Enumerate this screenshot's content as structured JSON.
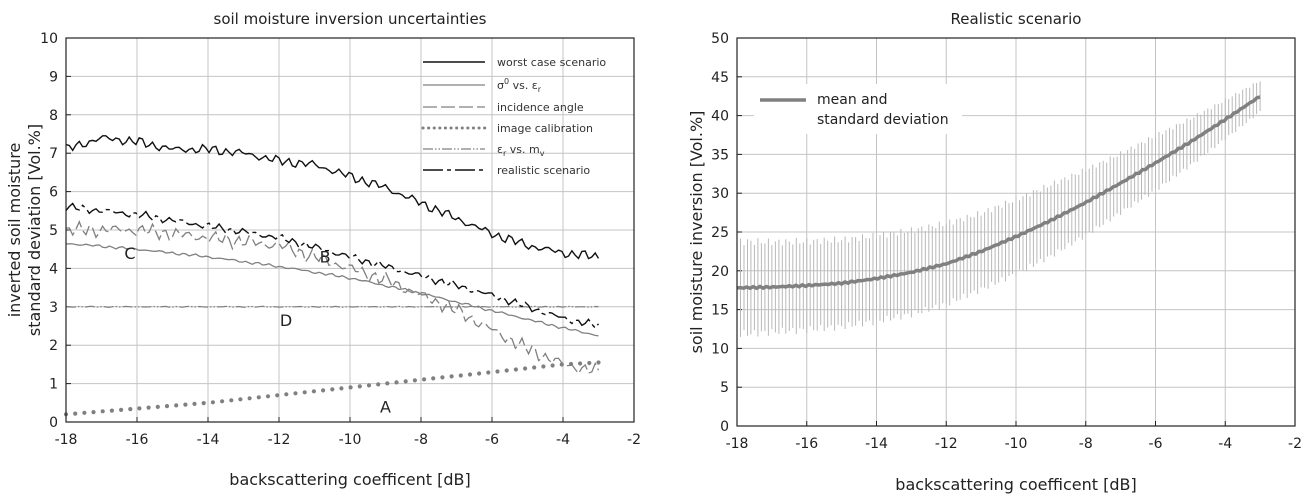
{
  "chart_data": [
    {
      "type": "line",
      "title": "soil moisture inversion uncertainties",
      "xlabel": "backscattering coefficent [dB]",
      "ylabel_lines": [
        "inverted soil moisture",
        "standard deviation [Vol.%]"
      ],
      "xlim": [
        -18,
        -2
      ],
      "ylim": [
        0,
        10
      ],
      "xticks": [
        -18,
        -16,
        -14,
        -12,
        -10,
        -8,
        -6,
        -4,
        -2
      ],
      "yticks": [
        0,
        1,
        2,
        3,
        4,
        5,
        6,
        7,
        8,
        9,
        10
      ],
      "grid": true,
      "legend_position": "top-right",
      "series": [
        {
          "name": "worst case scenario",
          "x": [
            -18,
            -17,
            -16,
            -15,
            -14,
            -13,
            -12,
            -11,
            -10,
            -9,
            -8,
            -7,
            -6,
            -5,
            -4,
            -3
          ],
          "y": [
            7.1,
            7.4,
            7.3,
            7.1,
            7.1,
            7.0,
            6.8,
            6.7,
            6.4,
            6.1,
            5.7,
            5.3,
            4.9,
            4.6,
            4.4,
            4.3
          ]
        },
        {
          "name_sup": [
            "σ",
            "0",
            " vs. ε",
            "r"
          ],
          "x": [
            -18,
            -16,
            -14,
            -12,
            -10,
            -8,
            -6,
            -4,
            -3
          ],
          "y": [
            4.65,
            4.5,
            4.3,
            4.05,
            3.75,
            3.35,
            2.9,
            2.45,
            2.25
          ]
        },
        {
          "name": "incidence angle",
          "x": [
            -18,
            -17,
            -16,
            -15,
            -14,
            -13,
            -12,
            -11,
            -10,
            -9,
            -8,
            -7,
            -6,
            -5,
            -4,
            -3
          ],
          "y": [
            5.0,
            5.0,
            5.0,
            4.9,
            4.8,
            4.7,
            4.6,
            4.3,
            4.0,
            3.7,
            3.3,
            2.9,
            2.4,
            1.9,
            1.5,
            1.3
          ]
        },
        {
          "name": "image calibration",
          "x": [
            -18,
            -16,
            -14,
            -12,
            -10,
            -8,
            -6,
            -4,
            -3
          ],
          "y": [
            0.2,
            0.35,
            0.5,
            0.7,
            0.9,
            1.1,
            1.3,
            1.5,
            1.55
          ]
        },
        {
          "name_sub": [
            "ε",
            "r",
            " vs. m",
            "v"
          ],
          "x": [
            -18,
            -14,
            -10,
            -6,
            -3
          ],
          "y": [
            3.0,
            3.0,
            3.0,
            3.0,
            3.0
          ]
        },
        {
          "name": "realistic scenario",
          "x": [
            -18,
            -16,
            -14,
            -12,
            -10,
            -8,
            -6,
            -4,
            -3
          ],
          "y": [
            5.6,
            5.4,
            5.1,
            4.8,
            4.3,
            3.8,
            3.3,
            2.7,
            2.5
          ]
        }
      ],
      "annotations": [
        {
          "text": "A",
          "x": -9.0,
          "y": 0.25
        },
        {
          "text": "B",
          "x": -10.7,
          "y": 4.15
        },
        {
          "text": "C",
          "x": -16.2,
          "y": 4.25
        },
        {
          "text": "D",
          "x": -11.8,
          "y": 2.5
        }
      ]
    },
    {
      "type": "line",
      "title": "Realistic scenario",
      "xlabel": "backscattering coefficent [dB]",
      "ylabel": "soil moisture inversion [Vol.%]",
      "xlim": [
        -18,
        -2
      ],
      "ylim": [
        0,
        50
      ],
      "xticks": [
        -18,
        -16,
        -14,
        -12,
        -10,
        -8,
        -6,
        -4,
        -2
      ],
      "yticks": [
        0,
        5,
        10,
        15,
        20,
        25,
        30,
        35,
        40,
        45,
        50
      ],
      "grid": true,
      "legend_position": "top-left",
      "legend_lines": [
        "mean and",
        "standard deviation"
      ],
      "series": [
        {
          "x": [
            -18,
            -17,
            -16,
            -15,
            -14,
            -13,
            -12,
            -11,
            -10,
            -9,
            -8,
            -7,
            -6,
            -5,
            -4,
            -3
          ],
          "mean": [
            17.8,
            17.9,
            18.1,
            18.4,
            19.0,
            19.8,
            20.9,
            22.5,
            24.4,
            26.5,
            28.8,
            31.3,
            33.9,
            36.6,
            39.5,
            42.5
          ],
          "std": [
            6.0,
            5.8,
            5.7,
            5.6,
            5.5,
            5.4,
            5.2,
            4.9,
            4.8,
            4.6,
            4.2,
            3.8,
            3.5,
            3.0,
            2.5,
            2.0
          ]
        }
      ]
    }
  ],
  "colors": {
    "dark": "#111111",
    "gray": "#808080",
    "light_gray": "#b8b8b8",
    "grid": "#c4c4c4",
    "frame": "#222222"
  }
}
